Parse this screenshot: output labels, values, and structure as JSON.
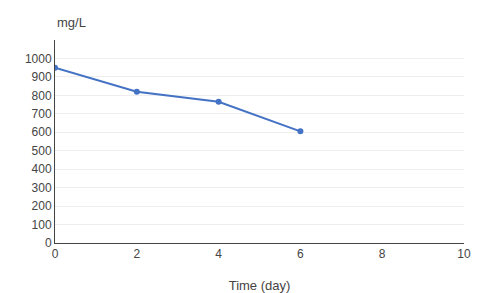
{
  "chart_data": {
    "type": "line",
    "x": [
      0,
      2,
      4,
      6
    ],
    "values": [
      950,
      820,
      765,
      605
    ],
    "color": "#4472C4",
    "marker": "circle",
    "xlabel": "Time (day)",
    "ylabel": "mg/L",
    "xlim": [
      0,
      10
    ],
    "ylim": [
      0,
      1100
    ],
    "xticks": [
      0,
      2,
      4,
      6,
      8,
      10
    ],
    "yticks": [
      0,
      100,
      200,
      300,
      400,
      500,
      600,
      700,
      800,
      900,
      1000
    ],
    "grid": "y"
  }
}
